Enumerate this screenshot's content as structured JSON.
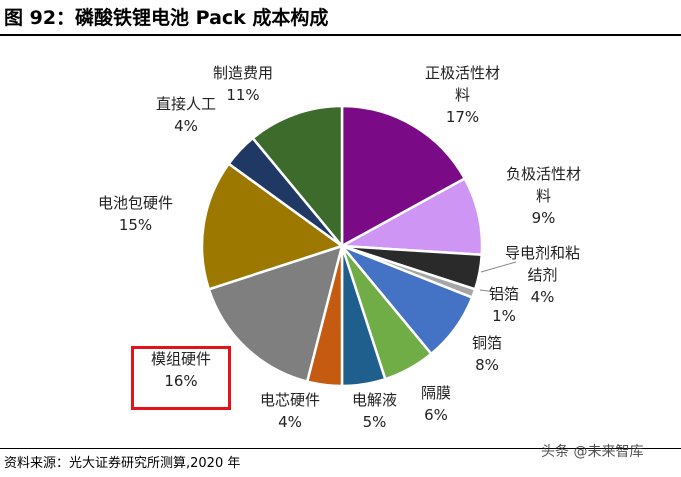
{
  "figure": {
    "title": "图 92：磷酸铁锂电池 Pack 成本构成",
    "source": "资料来源：光大证券研究所测算,2020 年",
    "watermark": "头条 @未来智库"
  },
  "chart_data": {
    "type": "pie",
    "title": "",
    "start_angle_deg": 0,
    "direction": "clockwise",
    "slice_border": "#ffffff",
    "slices": [
      {
        "name": "正极活性材料",
        "label_lines": [
          "正极活性材",
          "料"
        ],
        "value": 17,
        "value_label": "17%",
        "color": "#7b0a86"
      },
      {
        "name": "负极活性材料",
        "label_lines": [
          "负极活性材",
          "料"
        ],
        "value": 9,
        "value_label": "9%",
        "color": "#cf95f5"
      },
      {
        "name": "导电剂和粘结剂",
        "label_lines": [
          "导电剂和粘",
          "结剂"
        ],
        "value": 4,
        "value_label": "4%",
        "color": "#2a2a2a"
      },
      {
        "name": "铝箔",
        "label_lines": [
          "铝箔"
        ],
        "value": 1,
        "value_label": "1%",
        "color": "#a6a6a6"
      },
      {
        "name": "铜箔",
        "label_lines": [
          "铜箔"
        ],
        "value": 8,
        "value_label": "8%",
        "color": "#4472c4"
      },
      {
        "name": "隔膜",
        "label_lines": [
          "隔膜"
        ],
        "value": 6,
        "value_label": "6%",
        "color": "#70ad47"
      },
      {
        "name": "电解液",
        "label_lines": [
          "电解液"
        ],
        "value": 5,
        "value_label": "5%",
        "color": "#1f5f8e"
      },
      {
        "name": "电芯硬件",
        "label_lines": [
          "电芯硬件"
        ],
        "value": 4,
        "value_label": "4%",
        "color": "#c55a11"
      },
      {
        "name": "模组硬件",
        "label_lines": [
          "模组硬件"
        ],
        "value": 16,
        "value_label": "16%",
        "color": "#7f7f7f",
        "highlighted": true
      },
      {
        "name": "电池包硬件",
        "label_lines": [
          "电池包硬件"
        ],
        "value": 15,
        "value_label": "15%",
        "color": "#9c7800"
      },
      {
        "name": "直接人工",
        "label_lines": [
          "直接人工"
        ],
        "value": 4,
        "value_label": "4%",
        "color": "#203864"
      },
      {
        "name": "制造费用",
        "label_lines": [
          "制造费用"
        ],
        "value": 11,
        "value_label": "11%",
        "color": "#3d6b2c"
      }
    ]
  }
}
